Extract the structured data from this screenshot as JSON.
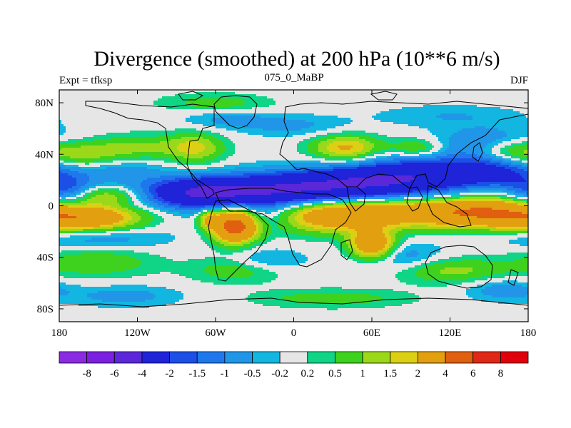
{
  "chart_data": {
    "type": "heatmap",
    "title": "Divergence (smoothed) at 200 hPa (10**6 m/s)",
    "left_string": "Expt = tfksp",
    "center_string": "075_0_MaBP",
    "right_string": "DJF",
    "x_ticks": [
      {
        "value": -180,
        "label": "180"
      },
      {
        "value": -120,
        "label": "120W"
      },
      {
        "value": -60,
        "label": "60W"
      },
      {
        "value": 0,
        "label": "0"
      },
      {
        "value": 60,
        "label": "60E"
      },
      {
        "value": 120,
        "label": "120E"
      },
      {
        "value": 180,
        "label": "180"
      }
    ],
    "y_ticks": [
      {
        "value": 80,
        "label": "80N"
      },
      {
        "value": 40,
        "label": "40N"
      },
      {
        "value": 0,
        "label": "0"
      },
      {
        "value": -40,
        "label": "40S"
      },
      {
        "value": -80,
        "label": "80S"
      }
    ],
    "xlim": [
      -180,
      180
    ],
    "ylim": [
      -90,
      90
    ],
    "contour_levels": [
      -8,
      -6,
      -4,
      -2,
      -1.5,
      -1,
      -0.5,
      -0.2,
      0.2,
      0.5,
      1,
      1.5,
      2,
      4,
      6,
      8
    ],
    "colors": [
      "#8a2be2",
      "#7b20e0",
      "#5a28d8",
      "#1f24d8",
      "#1c4fe6",
      "#1e78ec",
      "#2196e8",
      "#12b6e0",
      "#e6e6e6",
      "#10d486",
      "#3ed21e",
      "#9cd81a",
      "#dcd014",
      "#e2a010",
      "#e06010",
      "#e02816",
      "#e0000c"
    ],
    "features": [
      {
        "lon": -75,
        "lat": 10,
        "sx": 30,
        "sy": 8,
        "amp": -3.5
      },
      {
        "lon": -10,
        "lat": 12,
        "sx": 40,
        "sy": 9,
        "amp": -3.5
      },
      {
        "lon": 55,
        "lat": 18,
        "sx": 38,
        "sy": 9,
        "amp": -3.0
      },
      {
        "lon": 105,
        "lat": 25,
        "sx": 35,
        "sy": 10,
        "amp": -2.5
      },
      {
        "lon": 160,
        "lat": 28,
        "sx": 25,
        "sy": 9,
        "amp": -1.8
      },
      {
        "lon": -175,
        "lat": 10,
        "sx": 15,
        "sy": 8,
        "amp": -2.0
      },
      {
        "lon": -140,
        "lat": 30,
        "sx": 25,
        "sy": 8,
        "amp": -1.2
      },
      {
        "lon": 150,
        "lat": 50,
        "sx": 30,
        "sy": 8,
        "amp": -1.0
      },
      {
        "lon": -30,
        "lat": -8,
        "sx": 25,
        "sy": 7,
        "amp": -1.2
      },
      {
        "lon": -150,
        "lat": -25,
        "sx": 35,
        "sy": 8,
        "amp": -1.0
      },
      {
        "lon": 80,
        "lat": -40,
        "sx": 25,
        "sy": 8,
        "amp": -0.9
      },
      {
        "lon": -20,
        "lat": -42,
        "sx": 20,
        "sy": 6,
        "amp": -0.7
      },
      {
        "lon": 0,
        "lat": 62,
        "sx": 30,
        "sy": 6,
        "amp": -0.6
      },
      {
        "lon": -50,
        "lat": 67,
        "sx": 25,
        "sy": 5,
        "amp": -0.6
      },
      {
        "lon": 120,
        "lat": 70,
        "sx": 40,
        "sy": 6,
        "amp": -0.5
      },
      {
        "lon": -130,
        "lat": -70,
        "sx": 30,
        "sy": 6,
        "amp": -0.7
      },
      {
        "lon": 160,
        "lat": -65,
        "sx": 20,
        "sy": 6,
        "amp": -0.8
      },
      {
        "lon": 90,
        "lat": -5,
        "sx": 55,
        "sy": 8,
        "amp": 2.8
      },
      {
        "lon": 25,
        "lat": -8,
        "sx": 30,
        "sy": 9,
        "amp": 2.2
      },
      {
        "lon": 150,
        "lat": -5,
        "sx": 30,
        "sy": 8,
        "amp": 2.5
      },
      {
        "lon": -45,
        "lat": -15,
        "sx": 12,
        "sy": 9,
        "amp": 5.5
      },
      {
        "lon": -65,
        "lat": -10,
        "sx": 6,
        "sy": 5,
        "amp": 2.0
      },
      {
        "lon": -158,
        "lat": -10,
        "sx": 28,
        "sy": 7,
        "amp": 3.2
      },
      {
        "lon": -148,
        "lat": 8,
        "sx": 25,
        "sy": 5,
        "amp": 1.5
      },
      {
        "lon": -160,
        "lat": 38,
        "sx": 25,
        "sy": 8,
        "amp": 1.8
      },
      {
        "lon": -115,
        "lat": 45,
        "sx": 25,
        "sy": 7,
        "amp": 1.0
      },
      {
        "lon": -75,
        "lat": 45,
        "sx": 15,
        "sy": 8,
        "amp": 1.5
      },
      {
        "lon": 40,
        "lat": 45,
        "sx": 18,
        "sy": 7,
        "amp": 2.2
      },
      {
        "lon": 95,
        "lat": 44,
        "sx": 15,
        "sy": 6,
        "amp": 1.2
      },
      {
        "lon": 165,
        "lat": 42,
        "sx": 18,
        "sy": 7,
        "amp": 1.2
      },
      {
        "lon": 60,
        "lat": -30,
        "sx": 12,
        "sy": 8,
        "amp": 3.5
      },
      {
        "lon": -150,
        "lat": -42,
        "sx": 30,
        "sy": 9,
        "amp": 1.0
      },
      {
        "lon": -45,
        "lat": -50,
        "sx": 25,
        "sy": 7,
        "amp": 0.8
      },
      {
        "lon": 120,
        "lat": -50,
        "sx": 30,
        "sy": 7,
        "amp": 1.2
      },
      {
        "lon": -60,
        "lat": 80,
        "sx": 30,
        "sy": 5,
        "amp": 0.7
      },
      {
        "lon": 30,
        "lat": -72,
        "sx": 40,
        "sy": 5,
        "amp": 0.8
      }
    ]
  }
}
